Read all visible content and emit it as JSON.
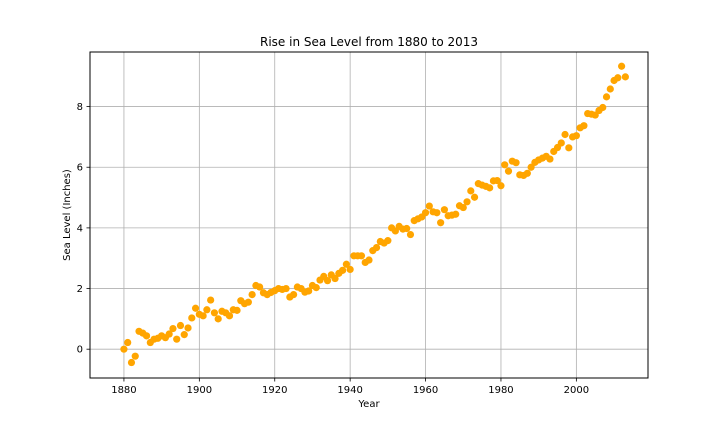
{
  "chart_data": {
    "type": "scatter",
    "title": "Rise in Sea Level from 1880 to 2013",
    "xlabel": "Year",
    "ylabel": "Sea Level (Inches)",
    "xlim": [
      1871,
      2019
    ],
    "ylim": [
      -0.95,
      9.8
    ],
    "xticks": [
      1880,
      1900,
      1920,
      1940,
      1960,
      1980,
      2000
    ],
    "yticks": [
      0,
      2,
      4,
      6,
      8
    ],
    "grid": true,
    "marker_color": "#ffa500",
    "series": [
      {
        "x": [
          1880,
          1881,
          1882,
          1883,
          1884,
          1885,
          1886,
          1887,
          1888,
          1889,
          1890,
          1891,
          1892,
          1893,
          1894,
          1895,
          1896,
          1897,
          1898,
          1899,
          1900,
          1901,
          1902,
          1903,
          1904,
          1905,
          1906,
          1907,
          1908,
          1909,
          1910,
          1911,
          1912,
          1913,
          1914,
          1915,
          1916,
          1917,
          1918,
          1919,
          1920,
          1921,
          1922,
          1923,
          1924,
          1925,
          1926,
          1927,
          1928,
          1929,
          1930,
          1931,
          1932,
          1933,
          1934,
          1935,
          1936,
          1937,
          1938,
          1939,
          1940,
          1941,
          1942,
          1943,
          1944,
          1945,
          1946,
          1947,
          1948,
          1949,
          1950,
          1951,
          1952,
          1953,
          1954,
          1955,
          1956,
          1957,
          1958,
          1959,
          1960,
          1961,
          1962,
          1963,
          1964,
          1965,
          1966,
          1967,
          1968,
          1969,
          1970,
          1971,
          1972,
          1973,
          1974,
          1975,
          1976,
          1977,
          1978,
          1979,
          1980,
          1981,
          1982,
          1983,
          1984,
          1985,
          1986,
          1987,
          1988,
          1989,
          1990,
          1991,
          1992,
          1993,
          1994,
          1995,
          1996,
          1997,
          1998,
          1999,
          2000,
          2001,
          2002,
          2003,
          2004,
          2005,
          2006,
          2007,
          2008,
          2009,
          2010,
          2011,
          2012,
          2013
        ],
        "y": [
          0.0,
          0.22,
          -0.44,
          -0.23,
          0.59,
          0.53,
          0.44,
          0.22,
          0.33,
          0.36,
          0.44,
          0.38,
          0.5,
          0.68,
          0.33,
          0.78,
          0.48,
          0.7,
          1.03,
          1.35,
          1.15,
          1.1,
          1.3,
          1.62,
          1.2,
          1.0,
          1.25,
          1.2,
          1.1,
          1.3,
          1.28,
          1.6,
          1.5,
          1.55,
          1.8,
          2.1,
          2.05,
          1.86,
          1.8,
          1.87,
          1.93,
          2.0,
          1.97,
          2.0,
          1.72,
          1.8,
          2.05,
          2.0,
          1.88,
          1.92,
          2.1,
          2.03,
          2.28,
          2.4,
          2.26,
          2.45,
          2.33,
          2.5,
          2.6,
          2.8,
          2.63,
          3.08,
          3.08,
          3.08,
          2.86,
          2.94,
          3.25,
          3.35,
          3.55,
          3.5,
          3.58,
          4.0,
          3.9,
          4.05,
          3.96,
          3.98,
          3.78,
          4.24,
          4.3,
          4.36,
          4.5,
          4.72,
          4.53,
          4.5,
          4.17,
          4.6,
          4.4,
          4.42,
          4.45,
          4.73,
          4.67,
          4.86,
          5.22,
          5.01,
          5.46,
          5.41,
          5.37,
          5.32,
          5.55,
          5.56,
          5.39,
          6.08,
          5.87,
          6.2,
          6.15,
          5.75,
          5.73,
          5.8,
          6.0,
          6.16,
          6.24,
          6.3,
          6.36,
          6.27,
          6.52,
          6.65,
          6.8,
          7.08,
          6.64,
          7.0,
          7.04,
          7.3,
          7.37,
          7.77,
          7.75,
          7.72,
          7.87,
          7.97,
          8.32,
          8.58,
          8.86,
          8.95,
          9.33,
          8.98
        ]
      }
    ]
  }
}
